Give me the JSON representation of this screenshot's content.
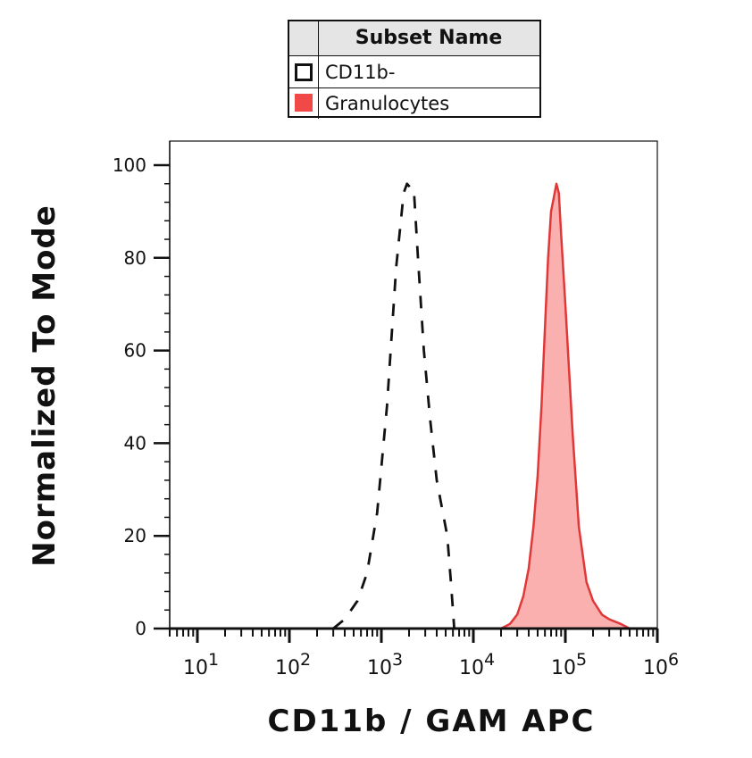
{
  "legend": {
    "header": "Subset Name",
    "items": [
      {
        "label": "CD11b-",
        "style": "dashed-outline",
        "color": "#111111"
      },
      {
        "label": "Granulocytes",
        "style": "filled",
        "color": "#f14848"
      }
    ]
  },
  "chart_data": {
    "type": "area",
    "xlabel": "CD11b  /  GAM APC",
    "ylabel": "Normalized To Mode",
    "xscale": "log",
    "xlim": [
      5,
      1000000
    ],
    "ylim": [
      0,
      100
    ],
    "yticks": [
      0,
      20,
      40,
      60,
      80,
      100
    ],
    "xticks": [
      {
        "value": 10,
        "base": "10",
        "exp": "1"
      },
      {
        "value": 100,
        "base": "10",
        "exp": "2"
      },
      {
        "value": 1000,
        "base": "10",
        "exp": "3"
      },
      {
        "value": 10000,
        "base": "10",
        "exp": "4"
      },
      {
        "value": 100000,
        "base": "10",
        "exp": "5"
      },
      {
        "value": 1000000,
        "base": "10",
        "exp": "6"
      }
    ],
    "series": [
      {
        "name": "CD11b-",
        "style": "dashed",
        "color": "#111111",
        "x": [
          300,
          400,
          550,
          700,
          900,
          1150,
          1450,
          1750,
          1900,
          2100,
          2250,
          2500,
          2900,
          3400,
          4000,
          5200,
          5700,
          6200,
          7000,
          100000
        ],
        "y": [
          0,
          2,
          6,
          12,
          25,
          48,
          78,
          94,
          96,
          95,
          95,
          80,
          60,
          45,
          32,
          20,
          10,
          0,
          0,
          0
        ]
      },
      {
        "name": "Granulocytes",
        "style": "filled",
        "color": "#e03838",
        "fill": "#fbb0b0",
        "x": [
          8,
          20000,
          25000,
          30000,
          35000,
          40000,
          45000,
          50000,
          55000,
          60000,
          65000,
          70000,
          75000,
          80000,
          85000,
          90000,
          100000,
          120000,
          140000,
          170000,
          200000,
          250000,
          300000,
          400000,
          500000,
          700000
        ],
        "y": [
          0,
          0,
          1,
          3,
          7,
          13,
          22,
          33,
          48,
          65,
          80,
          90,
          93,
          96,
          94,
          85,
          70,
          42,
          22,
          10,
          6,
          3,
          2,
          1,
          0,
          0
        ]
      }
    ]
  }
}
